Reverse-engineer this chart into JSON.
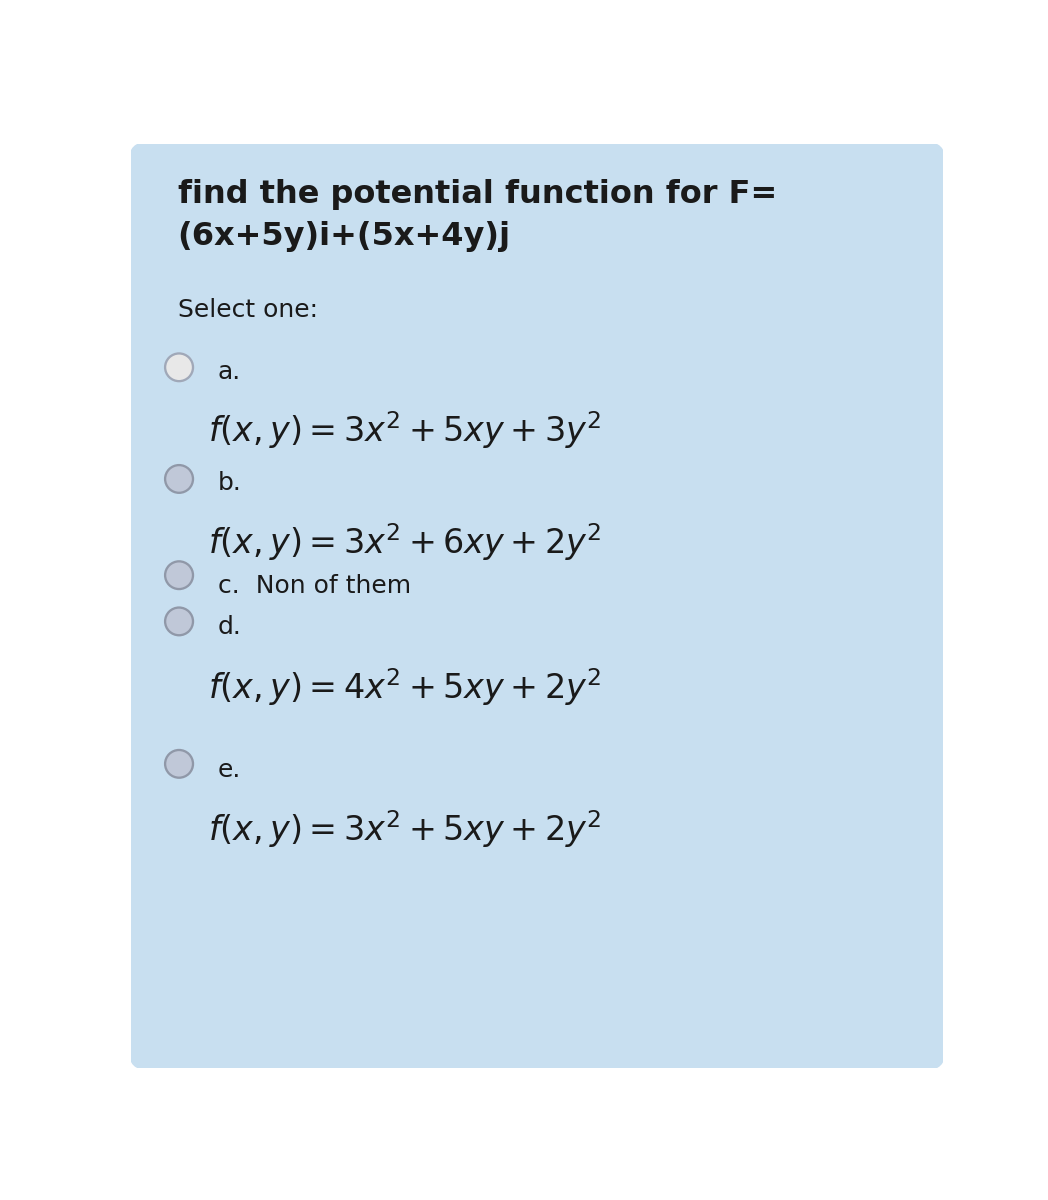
{
  "background_color": "#ffffff",
  "card_color": "#c8dff0",
  "title_text_line1": "find the potential function for F=",
  "title_text_line2": "(6x+5y)i+(5x+4y)j",
  "select_text": "Select one:",
  "options": [
    {
      "label": "a.",
      "formula": "$f(x,y)=3x^2+5xy+3y^2$",
      "radio_fill": "#e8e8e8",
      "radio_edge": "#a0a8b8"
    },
    {
      "label": "b.",
      "formula": "$f(x,y)=3x^2+6xy+2y^2$",
      "radio_fill": "#c0c8d8",
      "radio_edge": "#9098a8"
    },
    {
      "label": "c.",
      "formula": null,
      "inline_text": "c.  Non of them",
      "radio_fill": "#c0c8d8",
      "radio_edge": "#9098a8"
    },
    {
      "label": "d.",
      "formula": "$f(x,y)=4x^2+5xy+2y^2$",
      "radio_fill": "#c0c8d8",
      "radio_edge": "#9098a8"
    },
    {
      "label": "e.",
      "formula": "$f(x,y)=3x^2+5xy+2y^2$",
      "radio_fill": "#c0c8d8",
      "radio_edge": "#9098a8"
    }
  ],
  "title_fontsize": 23,
  "select_fontsize": 18,
  "label_fontsize": 18,
  "formula_fontsize": 24,
  "text_color": "#1a1a1a"
}
